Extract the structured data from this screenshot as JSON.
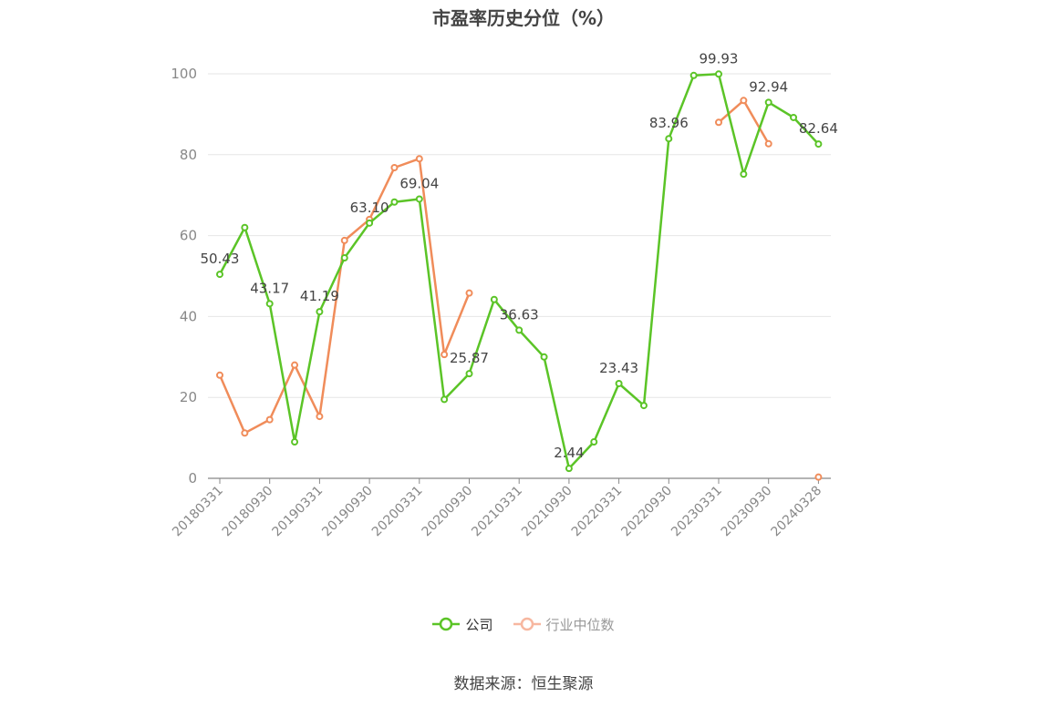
{
  "title": "市盈率历史分位（%）",
  "source": "数据来源：恒生聚源",
  "colors": {
    "company": "#5bc427",
    "industry": "#f08c5a",
    "industry_legend": "#f7b7a0",
    "grid": "#e6e6e6",
    "axis": "#888888"
  },
  "chart_data": {
    "type": "line",
    "ylim": [
      0,
      100
    ],
    "yticks": [
      0,
      20,
      40,
      60,
      80,
      100
    ],
    "x_tick_labels": [
      "20180331",
      "20180930",
      "20190331",
      "20190930",
      "20200331",
      "20200930",
      "20210331",
      "20210930",
      "20220331",
      "20220930",
      "20230331",
      "20230930",
      "20240328"
    ],
    "legend_position": "bottom",
    "series": [
      {
        "name": "公司",
        "values": [
          50.43,
          62.0,
          43.17,
          9.0,
          41.19,
          54.5,
          63.1,
          68.3,
          69.04,
          19.5,
          25.87,
          44.2,
          36.63,
          30.0,
          2.44,
          9.0,
          23.43,
          18.0,
          83.96,
          99.6,
          99.93,
          75.2,
          92.94,
          89.2,
          82.64
        ],
        "labels": [
          "50.43",
          "",
          "43.17",
          "",
          "41.19",
          "",
          "63.10",
          "",
          "69.04",
          "",
          "25.87",
          "",
          "36.63",
          "",
          "2.44",
          "",
          "23.43",
          "",
          "83.96",
          "",
          "99.93",
          "",
          "92.94",
          "",
          "82.64"
        ]
      },
      {
        "name": "行业中位数",
        "values": [
          25.5,
          11.2,
          14.5,
          28.0,
          15.3,
          58.8,
          64.0,
          76.8,
          79.0,
          30.6,
          45.8,
          null,
          null,
          null,
          null,
          null,
          null,
          null,
          null,
          null,
          88.0,
          93.4,
          82.7,
          null,
          0.3
        ]
      }
    ]
  }
}
